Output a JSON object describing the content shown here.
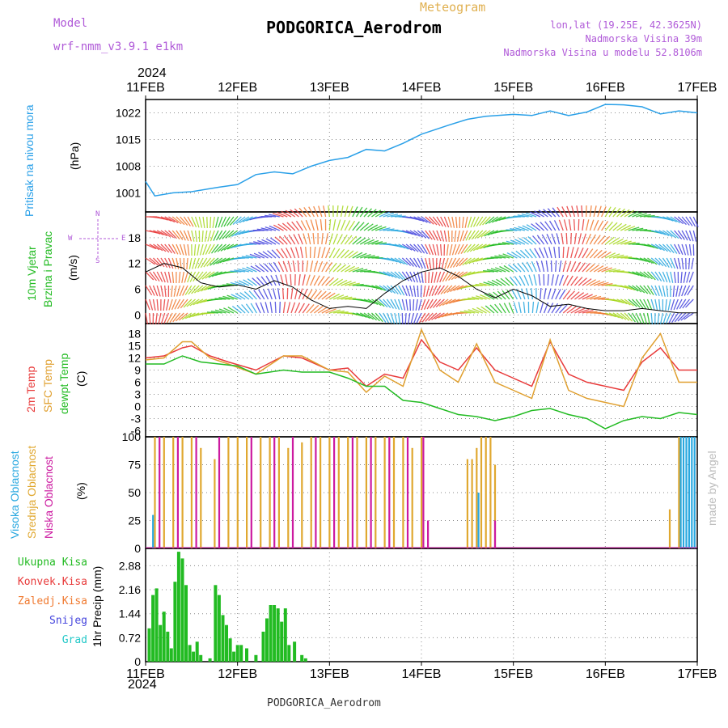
{
  "header": {
    "meteogram": "Meteogram",
    "title": "PODGORICA_Aerodrom",
    "model_label": "Model",
    "model_name": "wrf-nmm_v3.9.1 e1km",
    "lonlat": "lon,lat (19.25E, 42.3625N)",
    "elevation": "Nadmorska Visina 39m",
    "model_elevation": "Nadmorska Visina u modelu 52.8106m",
    "year_top": "2024",
    "year_bottom": "2024",
    "footer": "PODGORICA_Aerodrom",
    "watermark": "made by Angel"
  },
  "colors": {
    "pressure": "#2aa0e8",
    "temp2m": "#e83a3a",
    "sfc": "#e0a030",
    "dewpt": "#22bb22",
    "high_cloud": "#29a8e0",
    "mid_cloud": "#e0a830",
    "low_cloud": "#cc1aa0",
    "wind_label": "#22bb22",
    "purple": "#b05ad8"
  },
  "labels": {
    "pressure": [
      "Pritisak na nivou mora",
      "(hPa)"
    ],
    "wind": [
      "10m Vjetar",
      "Brzina i Pravac",
      "(m/s)"
    ],
    "wind_compass": [
      "N",
      "W",
      "E",
      "S"
    ],
    "temp": [
      "2m Temp",
      "SFC Temp",
      "dewpt Temp",
      "(C)"
    ],
    "cloud": [
      "Visoka Oblacnost",
      "Srednja Oblacnost",
      "Niska Oblacnost",
      "(%)"
    ],
    "precip_axis": "1hr Precip (mm)",
    "precip_legend": [
      "Ukupna Kisa",
      "Konvek.Kisa",
      "Zaledj.Kisa",
      "Snijeg",
      "Grad"
    ],
    "precip_legend_colors": [
      "#22bb22",
      "#e83a3a",
      "#f07a30",
      "#4444dd",
      "#22c8c8"
    ]
  },
  "chart_data": [
    {
      "type": "line",
      "title": "Pritisak na nivou mora",
      "ylabel": "(hPa)",
      "x_labels": [
        "11FEB",
        "12FEB",
        "13FEB",
        "14FEB",
        "15FEB",
        "16FEB",
        "17FEB"
      ],
      "yticks": [
        1001,
        1008,
        1015,
        1022
      ],
      "ylim": [
        996,
        1025.5
      ],
      "series": [
        {
          "name": "Pritisak na nivou mora",
          "x": [
            0,
            0.1,
            0.3,
            0.5,
            0.8,
            1.0,
            1.2,
            1.4,
            1.6,
            1.8,
            2.0,
            2.2,
            2.4,
            2.6,
            2.8,
            3.0,
            3.3,
            3.5,
            3.7,
            4.0,
            4.2,
            4.4,
            4.6,
            4.8,
            5.0,
            5.2,
            5.4,
            5.6,
            5.8,
            6.0
          ],
          "y": [
            1004,
            1000.2,
            1001.0,
            1001.3,
            1002.5,
            1003.2,
            1005.8,
            1006.5,
            1006.0,
            1008.0,
            1009.5,
            1010.3,
            1012.4,
            1012.0,
            1014.0,
            1016.4,
            1018.8,
            1020.3,
            1021.1,
            1021.6,
            1021.3,
            1022.5,
            1021.3,
            1022.2,
            1024.2,
            1024.1,
            1023.6,
            1021.7,
            1022.5,
            1022.0
          ]
        }
      ]
    },
    {
      "type": "line",
      "title": "10m Vjetar Brzina i Pravac",
      "ylabel": "(m/s)",
      "yticks": [
        0,
        6,
        12,
        18
      ],
      "ylim": [
        -2,
        24
      ],
      "series": [
        {
          "name": "10m Vjetar",
          "x": [
            0,
            0.2,
            0.4,
            0.6,
            0.8,
            1.0,
            1.2,
            1.4,
            1.6,
            1.8,
            2.0,
            2.2,
            2.4,
            2.6,
            2.8,
            3.0,
            3.2,
            3.4,
            3.6,
            3.8,
            4.0,
            4.2,
            4.4,
            4.6,
            4.8,
            5.0,
            5.2,
            5.4,
            5.6,
            5.8,
            6.0
          ],
          "y": [
            10,
            12,
            11,
            7.5,
            6.5,
            7,
            6,
            8,
            6.5,
            3.5,
            1.5,
            2,
            1.5,
            5,
            8,
            10,
            11,
            9,
            6,
            4,
            6,
            4.5,
            2,
            2.5,
            1.5,
            1,
            1,
            1.5,
            1,
            0.5,
            0.5
          ]
        }
      ]
    },
    {
      "type": "line",
      "title": "2m Temp / SFC Temp / dewpt Temp",
      "ylabel": "(C)",
      "yticks": [
        -6,
        -3,
        0,
        3,
        6,
        9,
        12,
        15,
        18
      ],
      "ylim": [
        -7.5,
        20.5
      ],
      "series": [
        {
          "name": "2m Temp",
          "x": [
            0,
            0.2,
            0.4,
            0.5,
            0.7,
            0.9,
            1.2,
            1.5,
            1.7,
            2.0,
            2.2,
            2.4,
            2.6,
            2.8,
            3.0,
            3.2,
            3.4,
            3.6,
            3.8,
            4.0,
            4.2,
            4.4,
            4.6,
            4.8,
            5.0,
            5.2,
            5.4,
            5.6,
            5.8,
            6.0
          ],
          "y": [
            12,
            12.5,
            14.5,
            15,
            12.5,
            11,
            9,
            12.5,
            12,
            9,
            9.5,
            5,
            8,
            7,
            16.5,
            11,
            9,
            14.5,
            9,
            7,
            5,
            16,
            8,
            6,
            5,
            4,
            11,
            14.5,
            9,
            9
          ]
        },
        {
          "name": "SFC Temp",
          "x": [
            0,
            0.2,
            0.4,
            0.5,
            0.7,
            0.9,
            1.2,
            1.5,
            1.7,
            2.0,
            2.2,
            2.4,
            2.6,
            2.8,
            3.0,
            3.2,
            3.4,
            3.6,
            3.8,
            4.0,
            4.2,
            4.4,
            4.6,
            4.8,
            5.0,
            5.2,
            5.4,
            5.6,
            5.8,
            6.0
          ],
          "y": [
            11.5,
            12,
            16,
            16,
            12,
            10.5,
            8,
            12.5,
            12.5,
            9,
            8.5,
            3.5,
            7.5,
            5,
            19,
            9,
            6,
            15.5,
            6,
            4,
            2,
            16.5,
            4,
            2,
            1,
            0,
            12,
            18,
            6,
            6
          ]
        },
        {
          "name": "dewpt Temp",
          "x": [
            0,
            0.2,
            0.4,
            0.6,
            0.8,
            1.0,
            1.2,
            1.5,
            1.7,
            2.0,
            2.2,
            2.4,
            2.6,
            2.8,
            3.0,
            3.2,
            3.4,
            3.6,
            3.8,
            4.0,
            4.2,
            4.4,
            4.6,
            4.8,
            5.0,
            5.2,
            5.4,
            5.6,
            5.8,
            6.0
          ],
          "y": [
            10.5,
            10.5,
            12.5,
            11,
            10.5,
            10,
            8,
            9,
            8.5,
            8.5,
            7,
            5,
            5,
            1.5,
            1,
            -0.5,
            -2,
            -2.5,
            -3.5,
            -2.5,
            -1,
            -0.5,
            -2,
            -3,
            -5.5,
            -3.5,
            -2.5,
            -3,
            -1.5,
            -2
          ]
        }
      ]
    },
    {
      "type": "bar",
      "title": "Visoka / Srednja / Niska Oblacnost",
      "ylabel": "(%)",
      "yticks": [
        0,
        25,
        50,
        75,
        100
      ],
      "ylim": [
        0,
        100
      ],
      "series": [
        {
          "name": "Visoka Oblacnost",
          "x": [
            0.08,
            3.62,
            5.82,
            5.85,
            5.88,
            5.91,
            5.94,
            5.97
          ],
          "y": [
            30,
            50,
            100,
            100,
            100,
            100,
            100,
            100
          ]
        },
        {
          "name": "Srednja Oblacnost",
          "x": [
            0.1,
            0.2,
            0.3,
            0.4,
            0.5,
            0.6,
            0.75,
            0.9,
            1.0,
            1.1,
            1.25,
            1.35,
            1.45,
            1.55,
            1.7,
            1.8,
            1.9,
            2.0,
            2.1,
            2.2,
            2.3,
            2.4,
            2.5,
            2.6,
            2.7,
            2.8,
            2.9,
            3.0,
            3.5,
            3.55,
            3.6,
            3.65,
            3.7,
            3.75,
            3.8,
            5.7,
            5.8
          ],
          "y": [
            100,
            100,
            100,
            100,
            100,
            90,
            80,
            100,
            100,
            100,
            100,
            100,
            100,
            90,
            95,
            100,
            100,
            100,
            100,
            100,
            100,
            100,
            100,
            100,
            100,
            100,
            90,
            100,
            80,
            80,
            90,
            100,
            100,
            100,
            75,
            35,
            100
          ]
        },
        {
          "name": "Niska Oblacnost",
          "x": [
            0.15,
            0.35,
            0.55,
            0.8,
            1.15,
            1.4,
            1.6,
            1.85,
            2.05,
            2.25,
            2.45,
            2.65,
            2.85,
            3.02,
            3.07,
            3.8
          ],
          "y": [
            100,
            100,
            100,
            100,
            100,
            100,
            100,
            100,
            100,
            100,
            100,
            100,
            100,
            100,
            25,
            25
          ]
        }
      ]
    },
    {
      "type": "bar",
      "title": "1hr Precip (mm)",
      "ylabel": "1hr Precip (mm)",
      "x_labels": [
        "11FEB",
        "12FEB",
        "13FEB",
        "14FEB",
        "15FEB",
        "16FEB",
        "17FEB"
      ],
      "yticks": [
        0,
        0.72,
        1.44,
        2.16,
        2.88
      ],
      "ylim": [
        0,
        3.4
      ],
      "series": [
        {
          "name": "Ukupna Kisa",
          "x": [
            0.04,
            0.08,
            0.12,
            0.16,
            0.2,
            0.24,
            0.28,
            0.32,
            0.36,
            0.4,
            0.44,
            0.48,
            0.52,
            0.56,
            0.6,
            0.7,
            0.76,
            0.8,
            0.84,
            0.88,
            0.92,
            0.96,
            1.0,
            1.04,
            1.1,
            1.2,
            1.28,
            1.32,
            1.36,
            1.4,
            1.44,
            1.48,
            1.52,
            1.56,
            1.62,
            1.7,
            1.74
          ],
          "y": [
            1.0,
            2.0,
            2.2,
            1.1,
            1.5,
            0.9,
            0.4,
            2.4,
            3.3,
            3.1,
            2.3,
            0.5,
            0.3,
            0.6,
            0.2,
            0.1,
            2.3,
            2.0,
            1.4,
            1.1,
            0.7,
            0.3,
            0.5,
            0.5,
            0.4,
            0.2,
            0.9,
            1.3,
            1.7,
            1.7,
            1.6,
            1.2,
            1.6,
            0.5,
            0.6,
            0.2,
            0.1
          ]
        }
      ]
    }
  ]
}
